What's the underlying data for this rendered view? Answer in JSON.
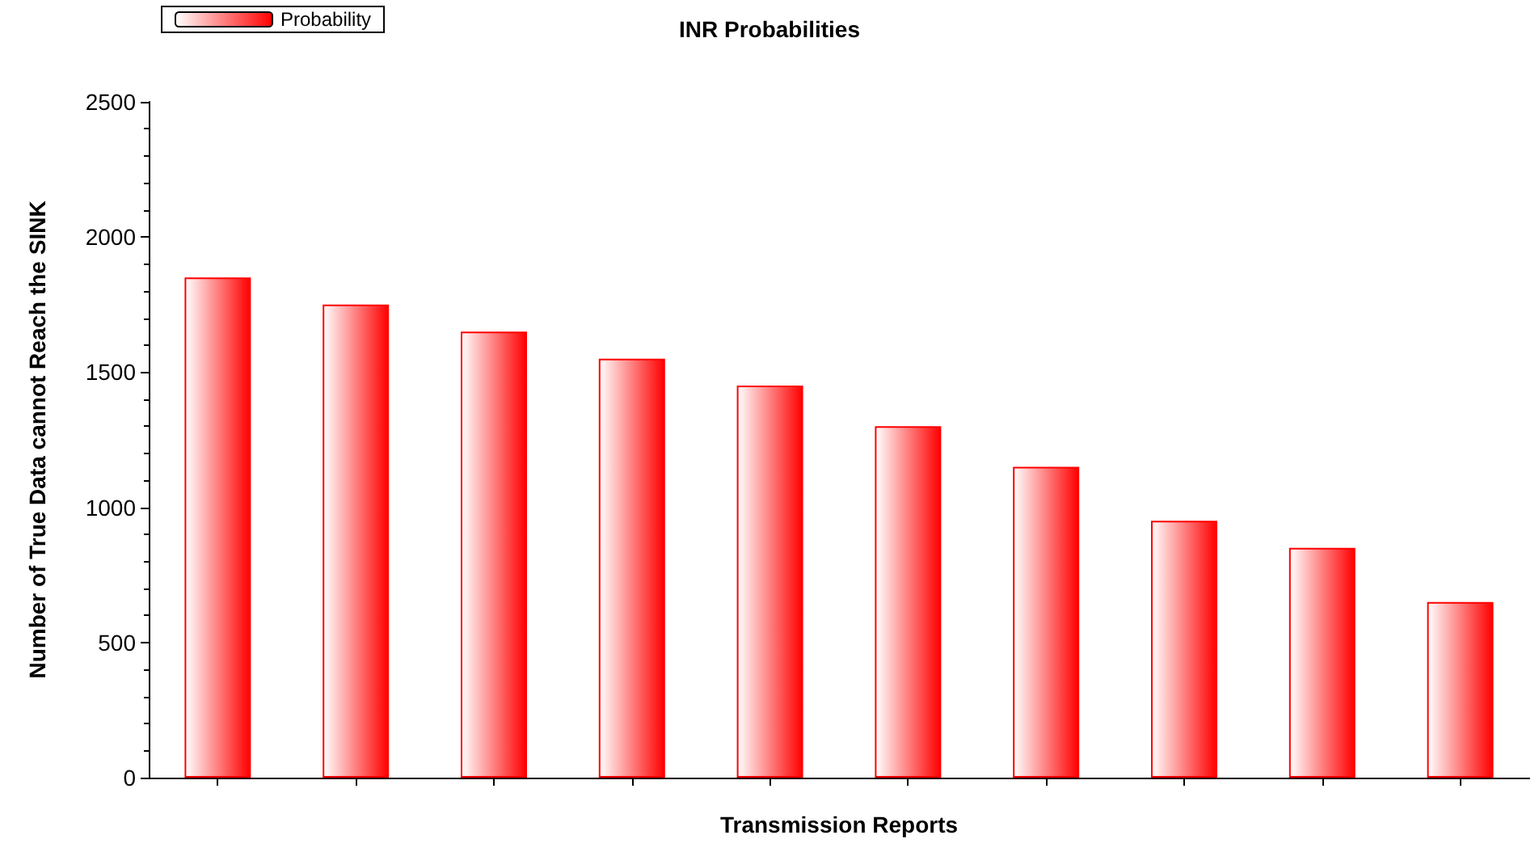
{
  "chart_data": {
    "type": "bar",
    "title": "INR Probabilities",
    "xlabel": "Transmission Reports",
    "ylabel": "Number of True Data cannot Reach the SINK",
    "categories": [
      null,
      null,
      null,
      null,
      null,
      null,
      null,
      null,
      null,
      null
    ],
    "series": [
      {
        "name": "Probability",
        "color": "#ff0000",
        "values": [
          1850,
          1750,
          1650,
          1550,
          1450,
          1300,
          1150,
          950,
          850,
          650
        ]
      }
    ],
    "ylim": [
      0,
      2500
    ],
    "yticks": [
      0,
      500,
      1000,
      1500,
      2000,
      2500
    ],
    "grid": false,
    "legend": "top left"
  }
}
